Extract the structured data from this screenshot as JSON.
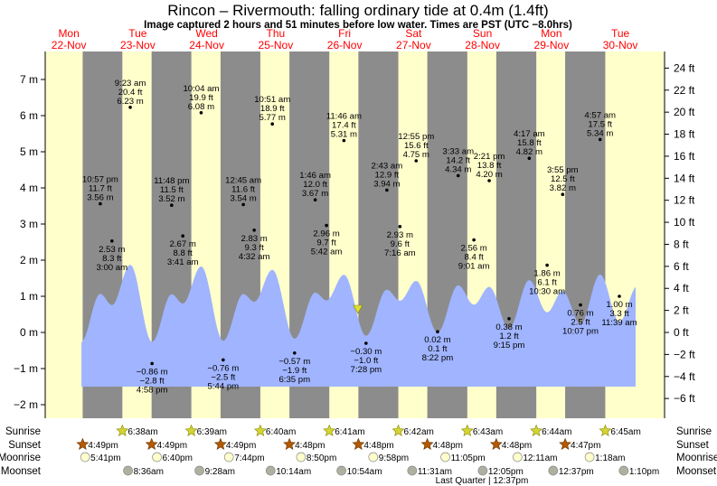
{
  "header": {
    "title": "Rincon – Rivermouth: falling  ordinary tide at 0.4m (1.4ft)",
    "subtitle": "Image captured 2 hours and 51 minutes before low water. Times are PST (UTC −8.0hrs)"
  },
  "colors": {
    "day_bg": "#ffffcc",
    "night_bg": "#8c8c8c",
    "water": "#a0b4ff",
    "day_label": "#ff0000",
    "sunset": "#b35900",
    "sunrise": "#d4d433",
    "moonrise": "#ffffcc",
    "moonset": "#b0b0a0"
  },
  "chart_data": {
    "type": "area",
    "title": "Rincon – Rivermouth: falling  ordinary tide at 0.4m (1.4ft)",
    "days": [
      {
        "dow": "Mon",
        "date": "22-Nov"
      },
      {
        "dow": "Tue",
        "date": "23-Nov"
      },
      {
        "dow": "Wed",
        "date": "24-Nov"
      },
      {
        "dow": "Thu",
        "date": "25-Nov"
      },
      {
        "dow": "Fri",
        "date": "26-Nov"
      },
      {
        "dow": "Sat",
        "date": "27-Nov"
      },
      {
        "dow": "Sun",
        "date": "28-Nov"
      },
      {
        "dow": "Mon",
        "date": "29-Nov"
      },
      {
        "dow": "Tue",
        "date": "30-Nov"
      }
    ],
    "y_left": {
      "unit": "m",
      "range": [
        -2,
        7
      ],
      "ticks": [
        "7 m",
        "6 m",
        "5 m",
        "4 m",
        "3 m",
        "2 m",
        "1 m",
        "0 m",
        "−1 m",
        "−2 m"
      ],
      "values": [
        7,
        6,
        5,
        4,
        3,
        2,
        1,
        0,
        -1,
        -2
      ]
    },
    "y_right": {
      "unit": "ft",
      "ticks": [
        "24 ft",
        "22 ft",
        "20 ft",
        "18 ft",
        "16 ft",
        "14 ft",
        "12 ft",
        "10 ft",
        "8 ft",
        "6 ft",
        "4 ft",
        "2 ft",
        "0 ft",
        "−2 ft",
        "−4 ft",
        "−6 ft"
      ],
      "values": [
        24,
        22,
        20,
        18,
        16,
        14,
        12,
        10,
        8,
        6,
        4,
        2,
        0,
        -2,
        -4,
        -6
      ]
    },
    "current": {
      "day": 4,
      "time": "4:37 pm",
      "height_m": 0.4
    },
    "extrema": [
      {
        "day": 0,
        "time": "10:57 pm",
        "m": 3.56,
        "m_label": "3.56 m",
        "ft": "11.7 ft",
        "type": "high"
      },
      {
        "day": 1,
        "time": "3:00 am",
        "m": 2.53,
        "m_label": "2.53 m",
        "ft": "8.3 ft",
        "type": "low"
      },
      {
        "day": 1,
        "time": "9:23 am",
        "m": 6.23,
        "m_label": "6.23 m",
        "ft": "20.4 ft",
        "type": "high"
      },
      {
        "day": 1,
        "time": "4:58 pm",
        "m": -0.86,
        "m_label": "−0.86 m",
        "ft": "−2.8 ft",
        "type": "low"
      },
      {
        "day": 1,
        "time": "11:48 pm",
        "m": 3.52,
        "m_label": "3.52 m",
        "ft": "11.5 ft",
        "type": "high"
      },
      {
        "day": 2,
        "time": "3:41 am",
        "m": 2.67,
        "m_label": "2.67 m",
        "ft": "8.8 ft",
        "type": "low"
      },
      {
        "day": 2,
        "time": "10:04 am",
        "m": 6.08,
        "m_label": "6.08 m",
        "ft": "19.9 ft",
        "type": "high"
      },
      {
        "day": 2,
        "time": "5:44 pm",
        "m": -0.76,
        "m_label": "−0.76 m",
        "ft": "−2.5 ft",
        "type": "low"
      },
      {
        "day": 3,
        "time": "12:45 am",
        "m": 3.54,
        "m_label": "3.54 m",
        "ft": "11.6 ft",
        "type": "high"
      },
      {
        "day": 3,
        "time": "4:32 am",
        "m": 2.83,
        "m_label": "2.83 m",
        "ft": "9.3 ft",
        "type": "low"
      },
      {
        "day": 3,
        "time": "10:51 am",
        "m": 5.77,
        "m_label": "5.77 m",
        "ft": "18.9 ft",
        "type": "high"
      },
      {
        "day": 3,
        "time": "6:35 pm",
        "m": -0.57,
        "m_label": "−0.57 m",
        "ft": "−1.9 ft",
        "type": "low"
      },
      {
        "day": 4,
        "time": "1:46 am",
        "m": 3.67,
        "m_label": "3.67 m",
        "ft": "12.0 ft",
        "type": "high"
      },
      {
        "day": 4,
        "time": "5:42 am",
        "m": 2.96,
        "m_label": "2.96 m",
        "ft": "9.7 ft",
        "type": "low"
      },
      {
        "day": 4,
        "time": "11:46 am",
        "m": 5.31,
        "m_label": "5.31 m",
        "ft": "17.4 ft",
        "type": "high"
      },
      {
        "day": 4,
        "time": "7:28 pm",
        "m": -0.3,
        "m_label": "−0.30 m",
        "ft": "−1.0 ft",
        "type": "low"
      },
      {
        "day": 5,
        "time": "2:43 am",
        "m": 3.94,
        "m_label": "3.94 m",
        "ft": "12.9 ft",
        "type": "high"
      },
      {
        "day": 5,
        "time": "7:16 am",
        "m": 2.93,
        "m_label": "2.93 m",
        "ft": "9.6 ft",
        "type": "low"
      },
      {
        "day": 5,
        "time": "12:55 pm",
        "m": 4.75,
        "m_label": "4.75 m",
        "ft": "15.6 ft",
        "type": "high"
      },
      {
        "day": 5,
        "time": "8:22 pm",
        "m": 0.02,
        "m_label": "0.02 m",
        "ft": "0.1 ft",
        "type": "low"
      },
      {
        "day": 6,
        "time": "3:33 am",
        "m": 4.34,
        "m_label": "4.34 m",
        "ft": "14.2 ft",
        "type": "high"
      },
      {
        "day": 6,
        "time": "9:01 am",
        "m": 2.56,
        "m_label": "2.56 m",
        "ft": "8.4 ft",
        "type": "low"
      },
      {
        "day": 6,
        "time": "2:21 pm",
        "m": 4.2,
        "m_label": "4.20 m",
        "ft": "13.8 ft",
        "type": "high"
      },
      {
        "day": 6,
        "time": "9:15 pm",
        "m": 0.38,
        "m_label": "0.38 m",
        "ft": "1.2 ft",
        "type": "low"
      },
      {
        "day": 7,
        "time": "4:17 am",
        "m": 4.82,
        "m_label": "4.82 m",
        "ft": "15.8 ft",
        "type": "high"
      },
      {
        "day": 7,
        "time": "10:30 am",
        "m": 1.86,
        "m_label": "1.86 m",
        "ft": "6.1 ft",
        "type": "low"
      },
      {
        "day": 7,
        "time": "3:55 pm",
        "m": 3.82,
        "m_label": "3.82 m",
        "ft": "12.5 ft",
        "type": "high"
      },
      {
        "day": 7,
        "time": "10:07 pm",
        "m": 0.76,
        "m_label": "0.76 m",
        "ft": "2.5 ft",
        "type": "low"
      },
      {
        "day": 8,
        "time": "4:57 am",
        "m": 5.34,
        "m_label": "5.34 m",
        "ft": "17.5 ft",
        "type": "high"
      },
      {
        "day": 8,
        "time": "11:39 am",
        "m": 1.0,
        "m_label": "1.00 m",
        "ft": "3.3 ft",
        "type": "low"
      }
    ]
  },
  "astro": {
    "row_labels": {
      "sunrise": "Sunrise",
      "sunset": "Sunset",
      "moonrise": "Moonrise",
      "moonset": "Moonset"
    },
    "sunrise": [
      {
        "day": 1,
        "time": "6:38am"
      },
      {
        "day": 2,
        "time": "6:39am"
      },
      {
        "day": 3,
        "time": "6:40am"
      },
      {
        "day": 4,
        "time": "6:41am"
      },
      {
        "day": 5,
        "time": "6:42am"
      },
      {
        "day": 6,
        "time": "6:43am"
      },
      {
        "day": 7,
        "time": "6:44am"
      },
      {
        "day": 8,
        "time": "6:45am"
      }
    ],
    "sunset": [
      {
        "day": 0,
        "time": "4:49pm"
      },
      {
        "day": 1,
        "time": "4:49pm"
      },
      {
        "day": 2,
        "time": "4:49pm"
      },
      {
        "day": 3,
        "time": "4:48pm"
      },
      {
        "day": 4,
        "time": "4:48pm"
      },
      {
        "day": 5,
        "time": "4:48pm"
      },
      {
        "day": 6,
        "time": "4:48pm"
      },
      {
        "day": 7,
        "time": "4:47pm"
      }
    ],
    "moonrise": [
      {
        "day": 0,
        "time": "5:41pm"
      },
      {
        "day": 1,
        "time": "6:40pm"
      },
      {
        "day": 2,
        "time": "7:44pm"
      },
      {
        "day": 3,
        "time": "8:50pm"
      },
      {
        "day": 4,
        "time": "9:58pm"
      },
      {
        "day": 5,
        "time": "11:05pm"
      },
      {
        "day": 7,
        "time": "12:11am"
      },
      {
        "day": 8,
        "time": "1:18am"
      }
    ],
    "moonset": [
      {
        "day": 1,
        "time": "8:36am"
      },
      {
        "day": 2,
        "time": "9:28am"
      },
      {
        "day": 3,
        "time": "10:14am"
      },
      {
        "day": 4,
        "time": "10:54am"
      },
      {
        "day": 5,
        "time": "11:31am"
      },
      {
        "day": 6,
        "time": "12:05pm"
      },
      {
        "day": 7,
        "time": "12:37pm"
      },
      {
        "day": 8,
        "time": "1:10pm"
      }
    ],
    "moon_phase": "Last Quarter | 12:37pm"
  }
}
